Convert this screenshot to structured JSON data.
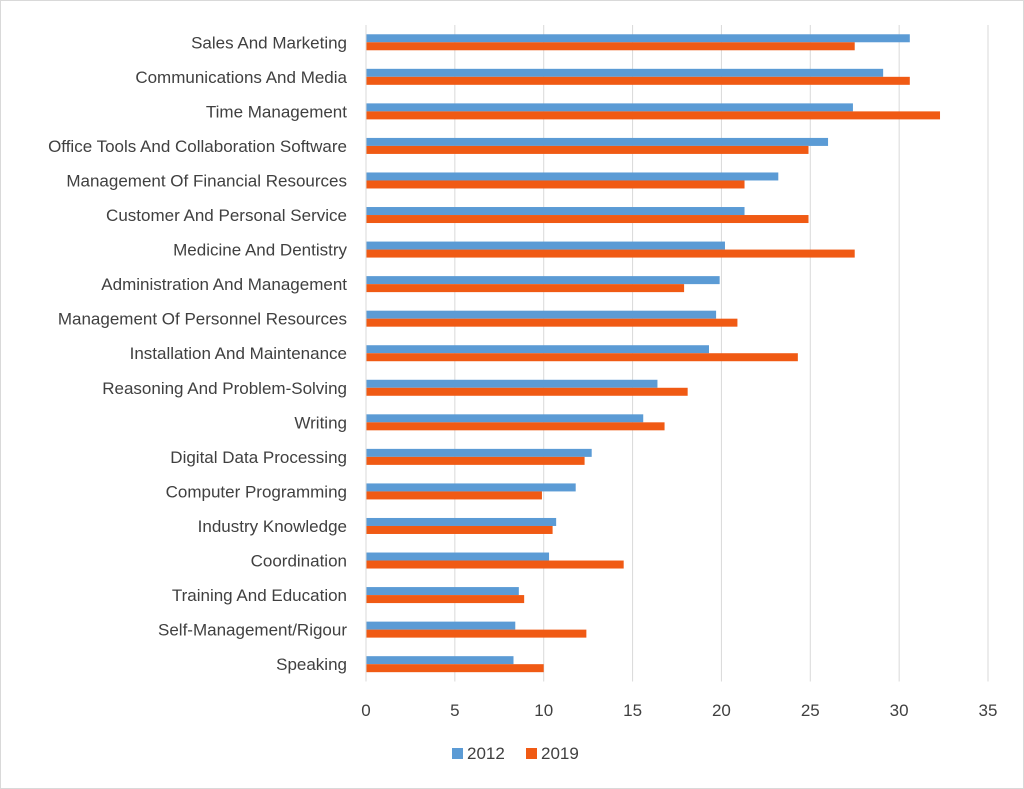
{
  "chart_data": {
    "type": "bar",
    "orientation": "horizontal",
    "title": "",
    "xlabel": "",
    "ylabel": "",
    "xlim": [
      0,
      35
    ],
    "xticks": [
      0,
      5,
      10,
      15,
      20,
      25,
      30,
      35
    ],
    "grid": true,
    "legend_position": "bottom",
    "categories": [
      "Sales And Marketing",
      "Communications And Media",
      "Time Management",
      "Office Tools And Collaboration Software",
      "Management Of Financial Resources",
      "Customer And Personal Service",
      "Medicine And Dentistry",
      "Administration And Management",
      "Management Of Personnel Resources",
      "Installation And Maintenance",
      "Reasoning And Problem-Solving",
      "Writing",
      "Digital Data Processing",
      "Computer Programming",
      "Industry Knowledge",
      "Coordination",
      "Training And Education",
      "Self-Management/Rigour",
      "Speaking"
    ],
    "series": [
      {
        "name": "2012",
        "color": "#5b9bd5",
        "values": [
          30.6,
          29.1,
          27.4,
          26.0,
          23.2,
          21.3,
          20.2,
          19.9,
          19.7,
          19.3,
          16.4,
          15.6,
          12.7,
          11.8,
          10.7,
          10.3,
          8.6,
          8.4,
          8.3
        ]
      },
      {
        "name": "2019",
        "color": "#f05a14",
        "values": [
          27.5,
          30.6,
          32.3,
          24.9,
          21.3,
          24.9,
          27.5,
          17.9,
          20.9,
          24.3,
          18.1,
          16.8,
          12.3,
          9.9,
          10.5,
          14.5,
          8.9,
          12.4,
          10.0
        ]
      }
    ]
  }
}
